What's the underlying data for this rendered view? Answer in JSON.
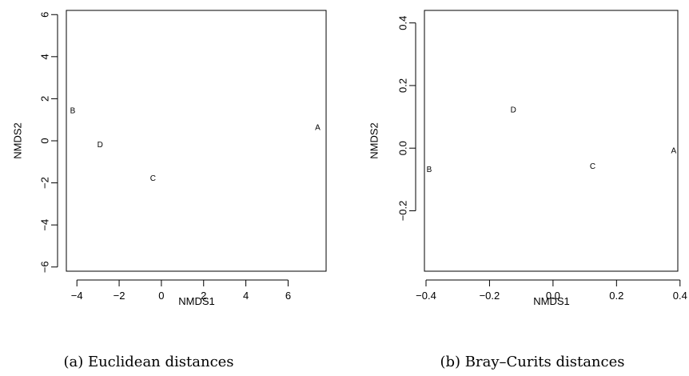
{
  "chart_data": [
    {
      "type": "scatter",
      "caption": "(a) Euclidean distances",
      "xlabel": "NMDS1",
      "ylabel": "NMDS2",
      "xlim": [
        -4.5,
        7.8
      ],
      "ylim": [
        -6.2,
        6.2
      ],
      "xticks": [
        -4,
        -2,
        0,
        2,
        4,
        6
      ],
      "yticks": [
        -6,
        -4,
        -2,
        0,
        2,
        4,
        6
      ],
      "xtick_labels": [
        "−4",
        "−2",
        "0",
        "2",
        "4",
        "6"
      ],
      "ytick_labels": [
        "−6",
        "−4",
        "−2",
        "0",
        "2",
        "4",
        "6"
      ],
      "grid": false,
      "points": [
        {
          "label": "A",
          "x": 7.4,
          "y": 0.6
        },
        {
          "label": "B",
          "x": -4.2,
          "y": 1.4
        },
        {
          "label": "C",
          "x": -0.4,
          "y": -1.8
        },
        {
          "label": "D",
          "x": -2.9,
          "y": -0.2
        }
      ]
    },
    {
      "type": "scatter",
      "caption": "(b) Bray–Curits distances",
      "xlabel": "NMDS1",
      "ylabel": "NMDS2",
      "xlim": [
        -0.405,
        0.393
      ],
      "ylim": [
        -0.393,
        0.44
      ],
      "xticks": [
        -0.4,
        -0.2,
        0.0,
        0.2,
        0.4
      ],
      "yticks": [
        -0.2,
        0.0,
        0.2,
        0.4
      ],
      "xtick_labels": [
        "−0.4",
        "−0.2",
        "0.0",
        "0.2",
        "0.4"
      ],
      "ytick_labels": [
        "−0.2",
        "0.0",
        "0.2",
        "0.4"
      ],
      "grid": false,
      "points": [
        {
          "label": "A",
          "x": 0.38,
          "y": -0.01
        },
        {
          "label": "B",
          "x": -0.39,
          "y": -0.07
        },
        {
          "label": "C",
          "x": 0.125,
          "y": -0.06
        },
        {
          "label": "D",
          "x": -0.125,
          "y": 0.12
        }
      ]
    }
  ]
}
